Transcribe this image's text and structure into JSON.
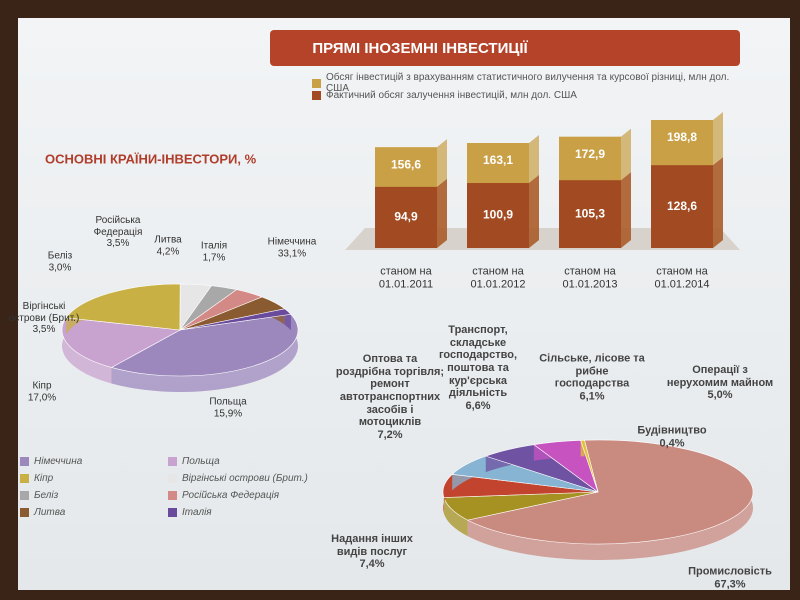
{
  "header": {
    "title": "ПРЯМІ ІНОЗЕМНІ ІНВЕСТИЦІЇ"
  },
  "chart_data": [
    {
      "type": "bar",
      "categories": [
        "станом на 01.01.2011",
        "станом на 01.01.2012",
        "станом на 01.01.2013",
        "станом на 01.01.2014"
      ],
      "series": [
        {
          "name": "Обсяг інвестицій з врахуванням статистичного вилучення та курсової різниці, млн дол. США",
          "color": "#c9a046",
          "values": [
            156.6,
            163.1,
            172.9,
            198.8
          ],
          "value_labels": [
            "156,6",
            "163,1",
            "172,9",
            "198,8"
          ]
        },
        {
          "name": "Фактичний обсяг залучення інвестицій, млн дол. США",
          "color": "#a24a22",
          "values": [
            94.9,
            100.9,
            105.3,
            128.6
          ],
          "value_labels": [
            "94,9",
            "100,9",
            "105,3",
            "128,6"
          ]
        }
      ]
    },
    {
      "type": "pie",
      "title": "ОСНОВНІ КРАЇНИ-ІНВЕСТОРИ, %",
      "categories": [
        "Німеччина",
        "Польща",
        "Кіпр",
        "Віргінські острови (Брит.)",
        "Беліз",
        "Російська Федерація",
        "Литва",
        "Італія"
      ],
      "values": [
        33.1,
        15.9,
        17.0,
        3.5,
        3.0,
        3.5,
        4.2,
        1.7
      ],
      "value_labels": [
        "33,1%",
        "15,9%",
        "17,0%",
        "3,5%",
        "3,0%",
        "3,5%",
        "4,2%",
        "1,7%"
      ],
      "colors": [
        "#9c88bd",
        "#c9a3cf",
        "#c8b044",
        "#e6e6e6",
        "#a8a8a8",
        "#d38a86",
        "#8a5a30",
        "#6a4a9c"
      ]
    },
    {
      "type": "pie",
      "categories": [
        "Промисловість",
        "Надання інших видів послуг",
        "Оптова та роздрібна торгівля; ремонт автотранспортних засобів і мотоциклів",
        "Транспорт, складське господарство, поштова та кур'єрська діяльність",
        "Сільське, лісове та рибне господарства",
        "Операції з нерухомим майном",
        "Будівництво"
      ],
      "values": [
        67.3,
        7.4,
        7.2,
        6.6,
        6.1,
        5.0,
        0.4
      ],
      "value_labels": [
        "67,3%",
        "7,4%",
        "7,2%",
        "6,6%",
        "6,1%",
        "5,0%",
        "0,4%"
      ],
      "colors": [
        "#c98a80",
        "#a69222",
        "#c2442e",
        "#86b4d2",
        "#6f52a2",
        "#c653c0",
        "#e2c23a"
      ]
    }
  ]
}
